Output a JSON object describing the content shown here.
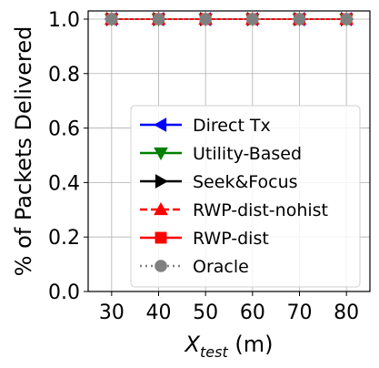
{
  "chart_data": {
    "type": "line",
    "title": "",
    "xlabel_main": "X",
    "xlabel_sub": "test",
    "xlabel_unit": " (m)",
    "ylabel": "% of Packets Delivered",
    "x": [
      30,
      40,
      50,
      60,
      70,
      80
    ],
    "xlim": [
      25,
      85
    ],
    "ylim": [
      0,
      1.03
    ],
    "xticks": [
      30,
      40,
      50,
      60,
      70,
      80
    ],
    "yticks": [
      0.0,
      0.2,
      0.4,
      0.6,
      0.8,
      1.0
    ],
    "ytick_labels": [
      "0.0",
      "0.2",
      "0.4",
      "0.6",
      "0.8",
      "1.0"
    ],
    "grid": true,
    "legend_position": "lower-right",
    "series": [
      {
        "name": "Direct Tx",
        "color": "#0000ff",
        "marker": "triangle-left",
        "dash": "solid",
        "values": [
          1,
          1,
          1,
          1,
          1,
          1
        ]
      },
      {
        "name": "Utility-Based",
        "color": "#008000",
        "marker": "triangle-down",
        "dash": "solid",
        "values": [
          1,
          1,
          1,
          1,
          1,
          1
        ]
      },
      {
        "name": "Seek&Focus",
        "color": "#000000",
        "marker": "triangle-right",
        "dash": "solid",
        "values": [
          1,
          1,
          1,
          1,
          1,
          1
        ]
      },
      {
        "name": "RWP-dist-nohist",
        "color": "#ff0000",
        "marker": "triangle-up",
        "dash": "dashed",
        "values": [
          1,
          1,
          1,
          1,
          1,
          1
        ]
      },
      {
        "name": "RWP-dist",
        "color": "#ff0000",
        "marker": "square",
        "dash": "solid",
        "values": [
          1,
          1,
          1,
          1,
          1,
          1
        ]
      },
      {
        "name": "Oracle",
        "color": "#808080",
        "marker": "circle",
        "dash": "dotted",
        "values": [
          1,
          1,
          1,
          1,
          1,
          1
        ]
      }
    ]
  }
}
